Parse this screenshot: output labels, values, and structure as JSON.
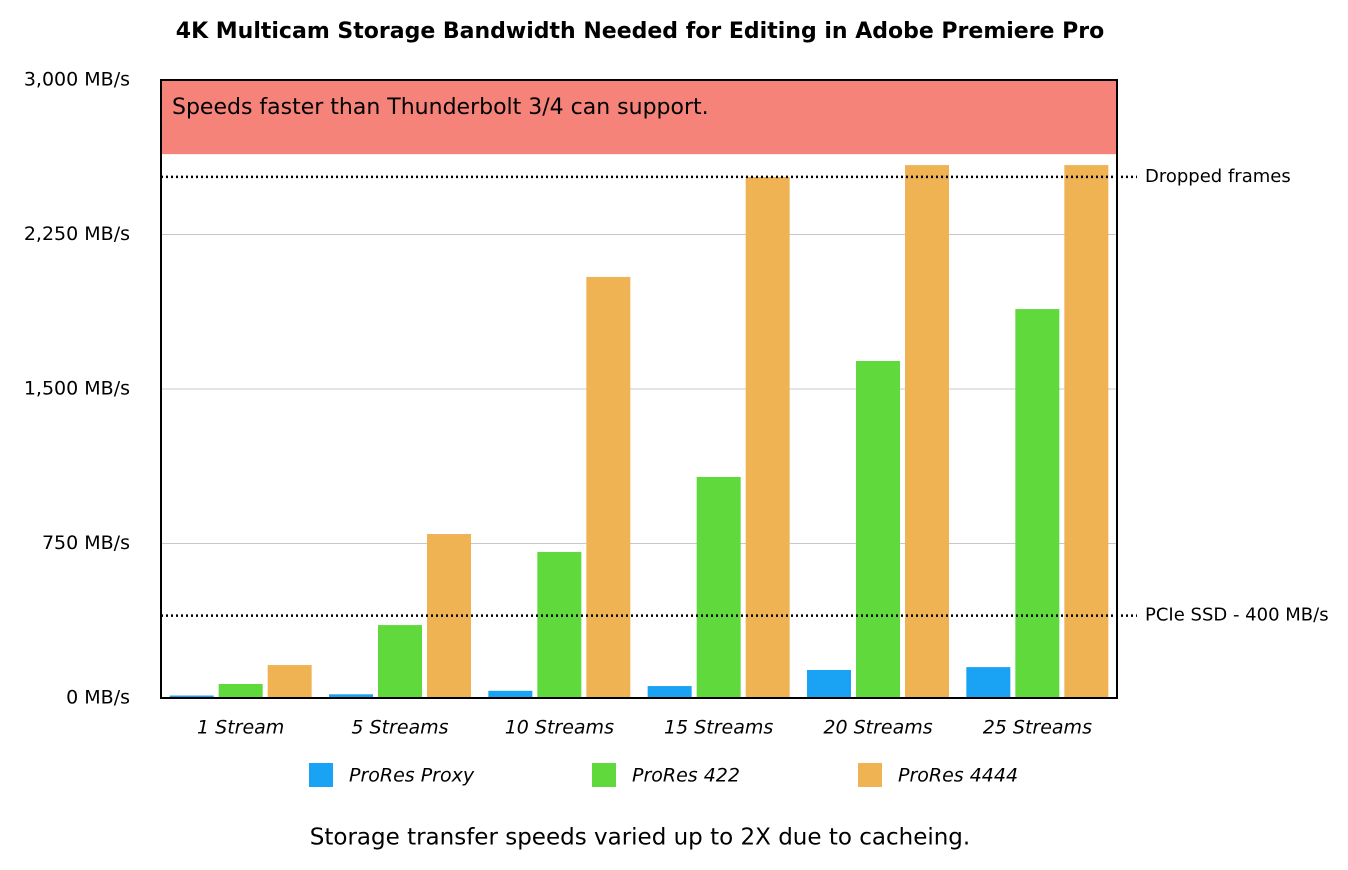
{
  "chart_data": {
    "type": "bar",
    "title": "4K Multicam Storage Bandwidth Needed for Editing in Adobe Premiere Pro",
    "footnote": "Storage transfer speeds varied up to 2X due to cacheing.",
    "categories": [
      "1 Stream",
      "5 Streams",
      "10 Streams",
      "15 Streams",
      "20 Streams",
      "25 Streams"
    ],
    "series": [
      {
        "name": "ProRes Proxy",
        "color": "#1aa3f5",
        "values": [
          12,
          18,
          35,
          58,
          136,
          150
        ]
      },
      {
        "name": "ProRes 422",
        "color": "#5fd93c",
        "values": [
          68,
          354,
          709,
          1073,
          1636,
          1888
        ]
      },
      {
        "name": "ProRes 4444",
        "color": "#efb354",
        "values": [
          160,
          796,
          2044,
          2529,
          2587,
          2587
        ]
      }
    ],
    "ylim": [
      0,
      3000
    ],
    "yticks": [
      {
        "value": 0,
        "label": "0 MB/s"
      },
      {
        "value": 750,
        "label": "750 MB/s"
      },
      {
        "value": 1500,
        "label": "1,500 MB/s"
      },
      {
        "value": 2250,
        "label": "2,250 MB/s"
      },
      {
        "value": 3000,
        "label": "3,000 MB/s"
      }
    ],
    "grid": true,
    "band": {
      "label": "Speeds faster than Thunderbolt 3/4 can support.",
      "from": 2640,
      "to": 3000,
      "color": "#f5837a"
    },
    "annotations": [
      {
        "label": "Dropped frames",
        "value": 2530
      },
      {
        "label": "PCIe SSD - 400 MB/s",
        "value": 400
      }
    ],
    "legend": "bottom"
  }
}
